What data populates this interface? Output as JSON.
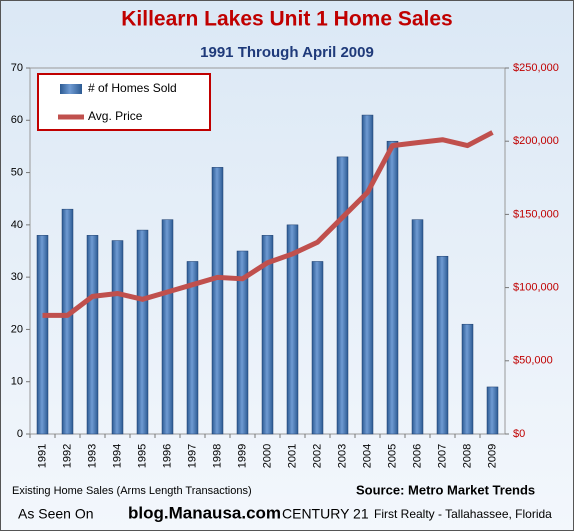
{
  "chart_data": {
    "type": "bar",
    "title": "Killearn Lakes Unit 1 Home Sales",
    "subtitle": "1991 Through April 2009",
    "categories": [
      "1991",
      "1992",
      "1993",
      "1994",
      "1995",
      "1996",
      "1997",
      "1998",
      "1999",
      "2000",
      "2001",
      "2002",
      "2003",
      "2004",
      "2005",
      "2006",
      "2007",
      "2008",
      "2009"
    ],
    "series": [
      {
        "name": "# of Homes Sold",
        "type": "bar",
        "axis": "y",
        "color": "#4f81bd",
        "values": [
          38,
          43,
          38,
          37,
          39,
          41,
          33,
          51,
          35,
          38,
          40,
          33,
          53,
          61,
          56,
          41,
          34,
          21,
          9
        ]
      },
      {
        "name": "Avg. Price",
        "type": "line",
        "axis": "y2",
        "color": "#c0504d",
        "values": [
          81000,
          81000,
          94000,
          96000,
          92000,
          97000,
          102000,
          107000,
          106000,
          117000,
          123000,
          131000,
          148000,
          165000,
          197000,
          199000,
          201000,
          197000,
          206000
        ]
      }
    ],
    "ylim": [
      0,
      70
    ],
    "yticks": [
      0,
      10,
      20,
      30,
      40,
      50,
      60,
      70
    ],
    "y2lim": [
      0,
      250000
    ],
    "y2ticks": [
      {
        "value": 0,
        "label": "$0"
      },
      {
        "value": 50000,
        "label": "$50,000"
      },
      {
        "value": 100000,
        "label": "$100,000"
      },
      {
        "value": 150000,
        "label": "$150,000"
      },
      {
        "value": 200000,
        "label": "$200,000"
      },
      {
        "value": 250000,
        "label": "$250,000"
      }
    ],
    "legend": "top-left",
    "grid": false,
    "annotations": [
      "Existing Home Sales (Arms Length Transactions)",
      "Source: Metro Market Trends",
      "As Seen On",
      "blog.Manausa.com",
      "CENTURY 21",
      "First Realty - Tallahassee, Florida"
    ]
  }
}
